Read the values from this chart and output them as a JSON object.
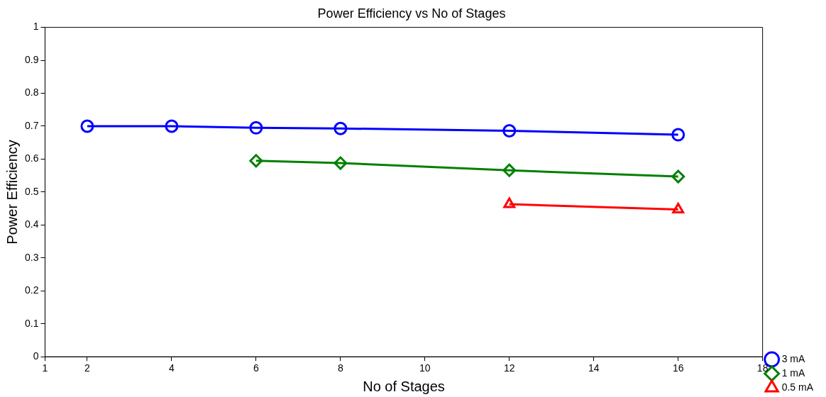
{
  "chart_data": {
    "type": "line",
    "title": "Power Efficiency vs No of Stages",
    "xlabel": "No of Stages",
    "ylabel": "Power Efficiency",
    "xlim": [
      1,
      18
    ],
    "xticks": [
      1,
      2,
      4,
      6,
      8,
      10,
      12,
      14,
      16,
      18
    ],
    "ylim": [
      0,
      1
    ],
    "yticks": [
      0,
      0.1,
      0.2,
      0.3,
      0.4,
      0.5,
      0.6,
      0.7,
      0.8,
      0.9,
      1
    ],
    "grid": false,
    "legend": "bottom right",
    "line_style": "solid",
    "series": [
      {
        "name": "3 mA",
        "color": "#0000ff",
        "marker": "circle",
        "x": [
          2,
          4,
          6,
          8,
          12,
          16
        ],
        "values": [
          0.7,
          0.7,
          0.695,
          0.693,
          0.686,
          0.674
        ]
      },
      {
        "name": "1 mA",
        "color": "#008000",
        "marker": "diamond",
        "x": [
          6,
          8,
          12,
          16
        ],
        "values": [
          0.595,
          0.588,
          0.566,
          0.547
        ]
      },
      {
        "name": "0.5 mA",
        "color": "#ff0000",
        "marker": "triangle",
        "x": [
          12,
          16
        ],
        "values": [
          0.463,
          0.447
        ]
      }
    ]
  }
}
